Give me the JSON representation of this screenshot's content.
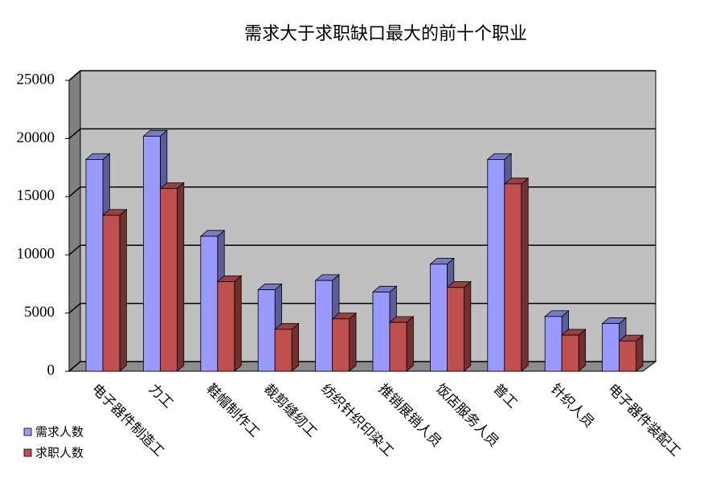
{
  "chart_data": {
    "type": "bar",
    "title": "需求大于求职缺口最大的前十个职业",
    "categories": [
      "电子器件制造工",
      "力工",
      "鞋帽制作工",
      "裁剪缝纫工",
      "纺织针织印染工",
      "推销展销人员",
      "饭店服务人员",
      "普工",
      "针织人员",
      "电子器件装配工"
    ],
    "series": [
      {
        "name": "需求人数",
        "color": "#9999ff",
        "values": [
          18200,
          20200,
          11600,
          7000,
          7800,
          6800,
          9200,
          18200,
          4700,
          4100
        ]
      },
      {
        "name": "求职人数",
        "color": "#c0504d",
        "values": [
          13400,
          15700,
          7700,
          3600,
          4500,
          4200,
          7200,
          16100,
          3100,
          2600
        ]
      }
    ],
    "ylim": [
      0,
      25000
    ],
    "yticks": [
      0,
      5000,
      10000,
      15000,
      20000,
      25000
    ],
    "grid": true,
    "legend": "left"
  }
}
